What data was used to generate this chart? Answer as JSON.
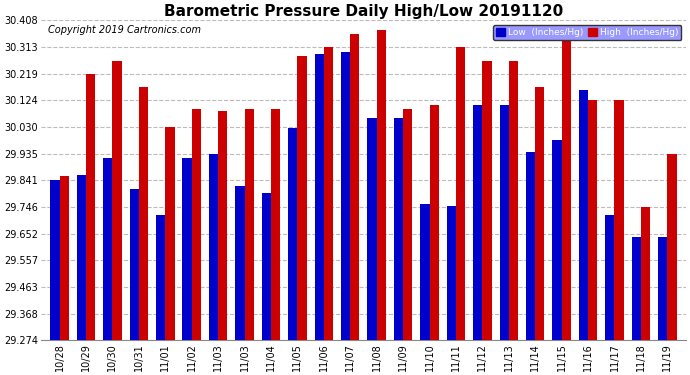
{
  "title": "Barometric Pressure Daily High/Low 20191120",
  "copyright": "Copyright 2019 Cartronics.com",
  "ylim": [
    29.274,
    30.408
  ],
  "yticks": [
    29.274,
    29.368,
    29.463,
    29.557,
    29.652,
    29.746,
    29.841,
    29.935,
    30.03,
    30.124,
    30.219,
    30.313,
    30.408
  ],
  "categories": [
    "10/28",
    "10/29",
    "10/30",
    "10/31",
    "11/01",
    "11/02",
    "11/03",
    "11/03",
    "11/04",
    "11/05",
    "11/06",
    "11/07",
    "11/08",
    "11/09",
    "11/10",
    "11/11",
    "11/12",
    "11/13",
    "11/14",
    "11/15",
    "11/16",
    "11/17",
    "11/18",
    "11/19"
  ],
  "low_values": [
    29.841,
    29.86,
    29.921,
    29.809,
    29.718,
    29.921,
    29.935,
    29.82,
    29.796,
    30.025,
    30.29,
    30.295,
    30.06,
    30.06,
    29.757,
    29.75,
    30.109,
    30.109,
    29.94,
    29.985,
    30.16,
    29.718,
    29.64,
    29.64
  ],
  "high_values": [
    29.857,
    30.219,
    30.265,
    30.17,
    30.03,
    30.094,
    30.085,
    30.094,
    30.094,
    30.28,
    30.313,
    30.36,
    30.375,
    30.094,
    30.109,
    30.313,
    30.265,
    30.265,
    30.17,
    30.34,
    30.124,
    30.124,
    29.746,
    29.935
  ],
  "low_color": "#0000cc",
  "high_color": "#cc0000",
  "bg_color": "#ffffff",
  "grid_color": "#bbbbbb",
  "title_fontsize": 11,
  "copyright_fontsize": 7,
  "tick_fontsize": 7,
  "legend_low_label": "Low  (Inches/Hg)",
  "legend_high_label": "High  (Inches/Hg)",
  "legend_bg": "#9999ff",
  "bar_width": 0.35
}
